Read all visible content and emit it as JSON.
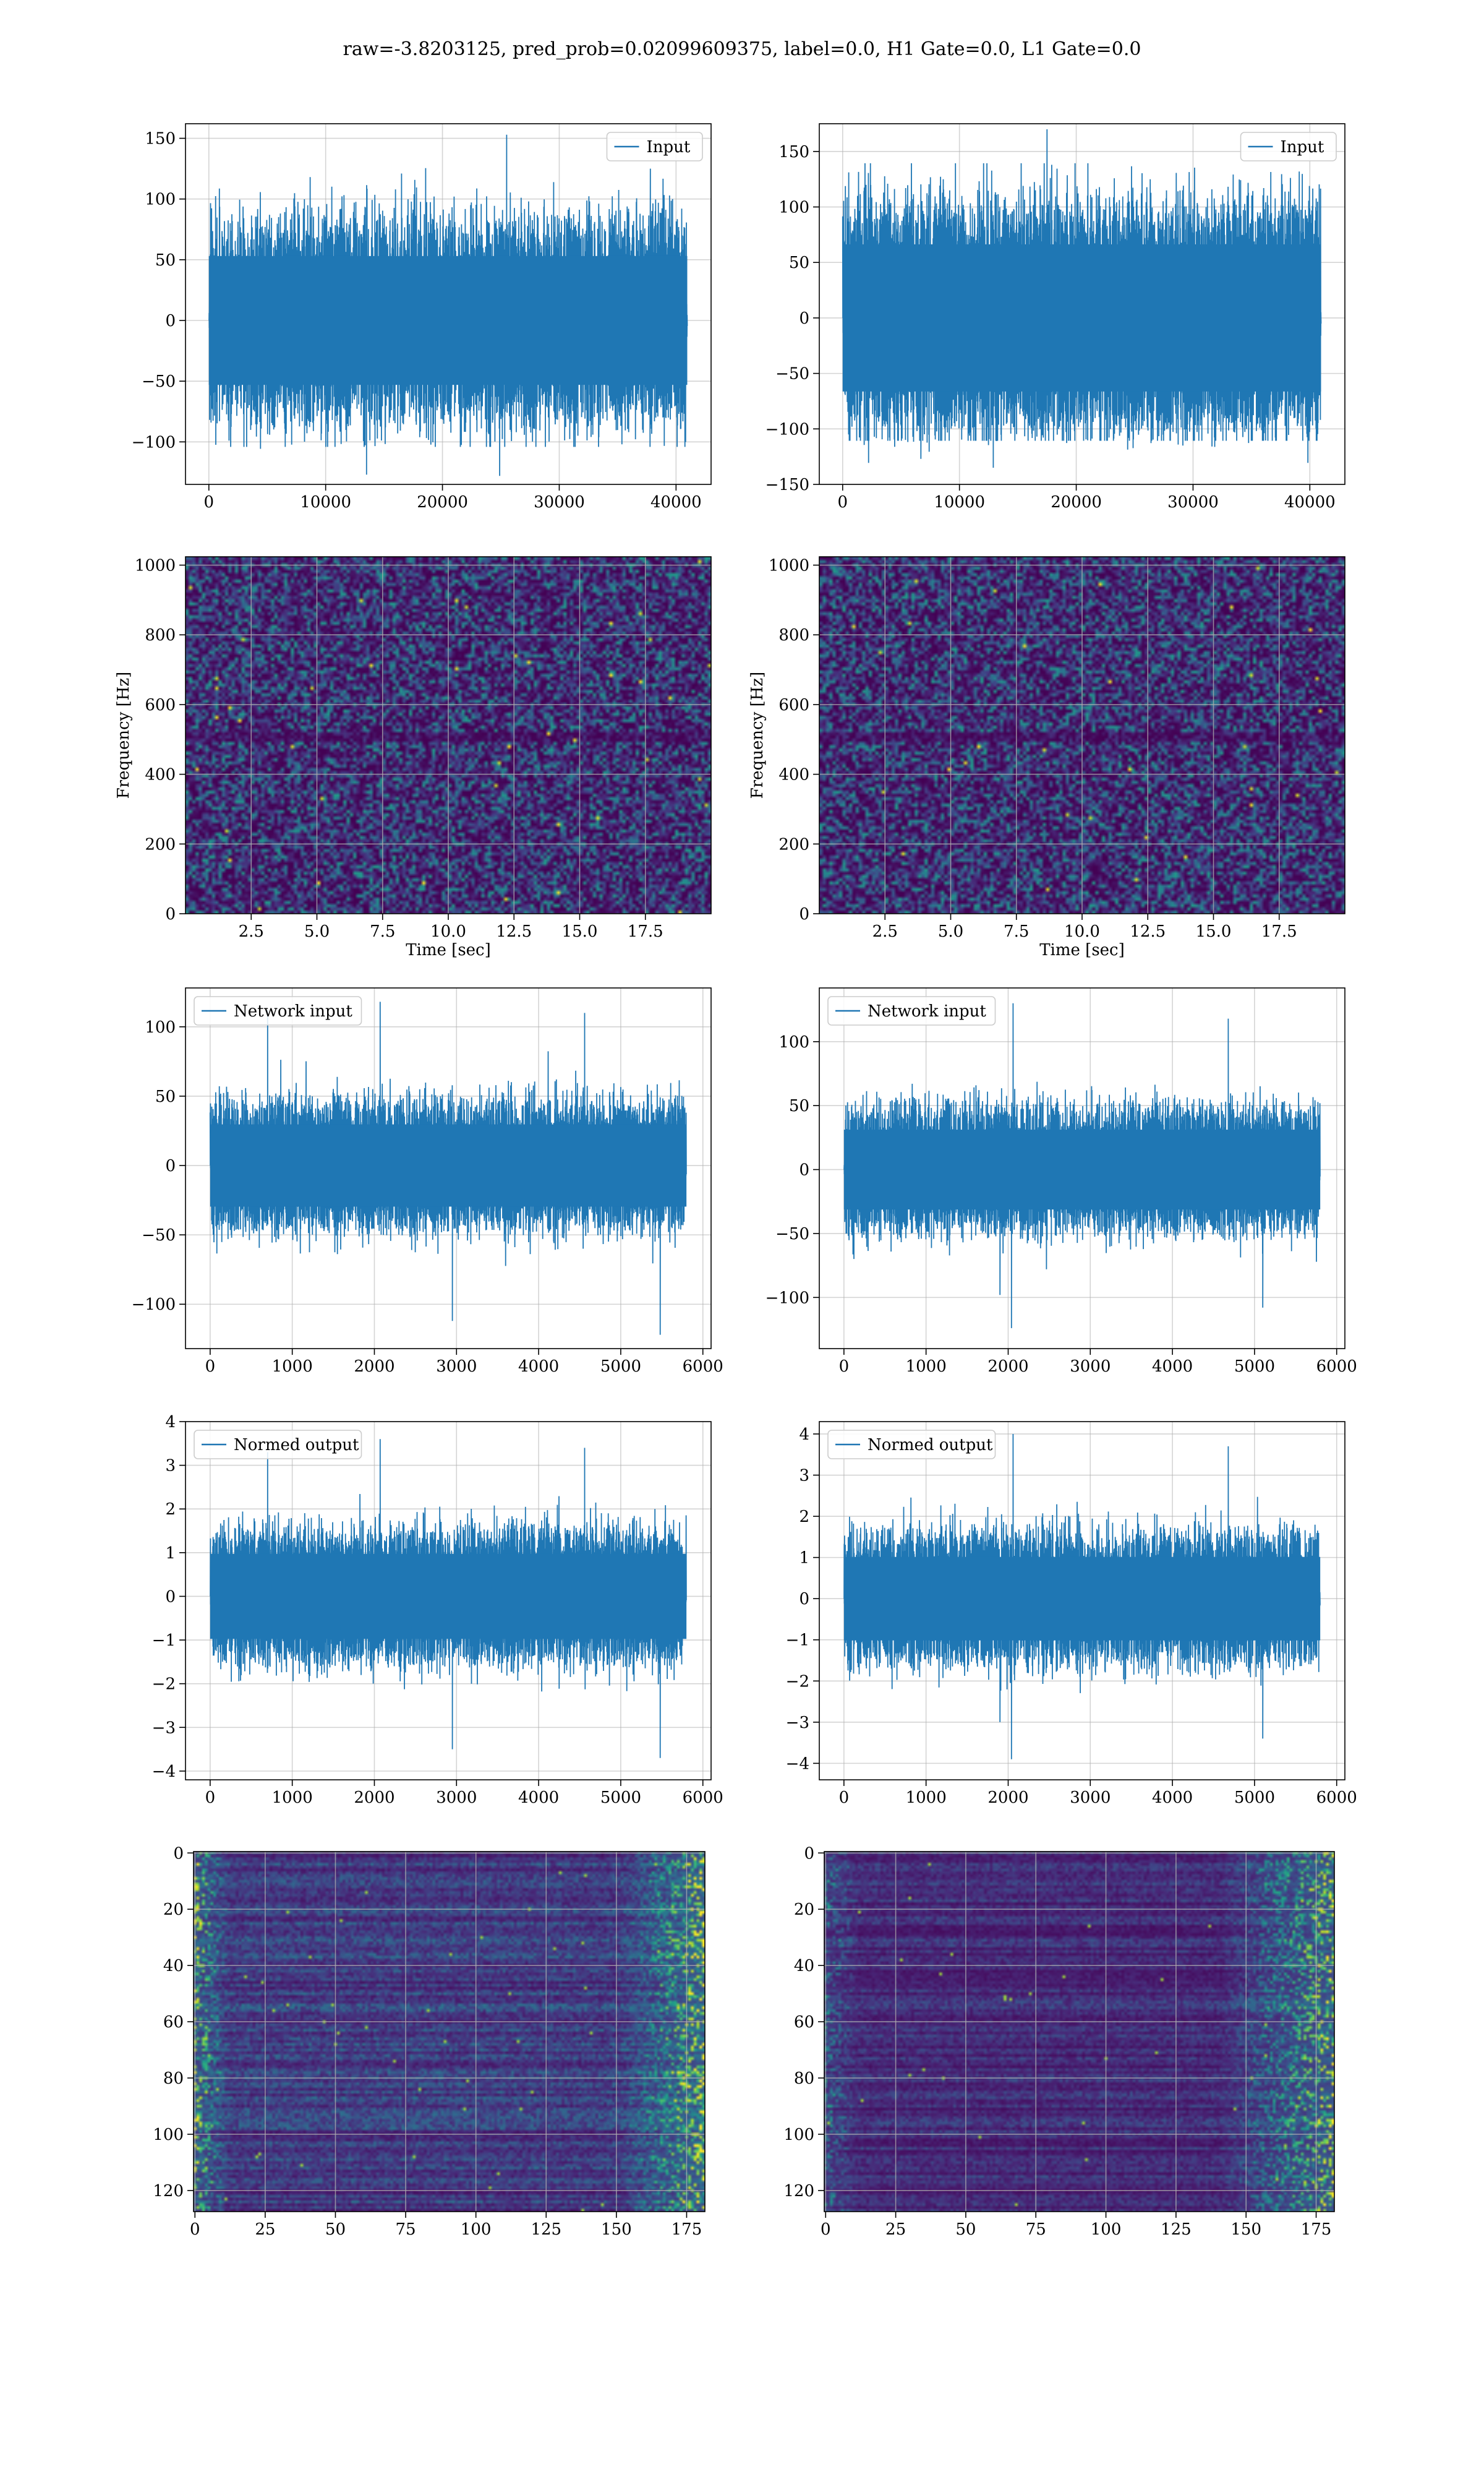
{
  "suptitle": "raw=-3.8203125, pred_prob=0.02099609375, label=0.0, H1 Gate=0.0, L1 Gate=0.0",
  "colors": {
    "line": "#1f77b4",
    "grid": "#b0b0b0",
    "viridis_low": "#440154",
    "viridis_mid": "#21918c",
    "viridis_high": "#fde725"
  },
  "chart_data": [
    {
      "id": "input-h1",
      "type": "line",
      "column": "left",
      "row": 0,
      "legend": "Input",
      "legend_loc": "upper right",
      "xlim": [
        -2000,
        43000
      ],
      "ylim": [
        -135,
        162
      ],
      "xticks": [
        0,
        10000,
        20000,
        30000,
        40000
      ],
      "yticks": [
        -100,
        -50,
        0,
        50,
        100,
        150
      ],
      "signal": {
        "n": 40960,
        "body": 68,
        "peak_max": 153,
        "peak_min": -127,
        "spikes": [
          [
            25500,
            153
          ],
          [
            13500,
            -127
          ],
          [
            16500,
            121
          ],
          [
            37800,
            125
          ],
          [
            24900,
            -128
          ]
        ]
      },
      "grid": true
    },
    {
      "id": "input-l1",
      "type": "line",
      "column": "right",
      "row": 0,
      "legend": "Input",
      "legend_loc": "upper right",
      "xlim": [
        -2000,
        43000
      ],
      "ylim": [
        -150,
        175
      ],
      "xticks": [
        0,
        10000,
        20000,
        30000,
        40000
      ],
      "yticks": [
        -150,
        -100,
        -50,
        0,
        50,
        100,
        150
      ],
      "signal": {
        "n": 40960,
        "body": 85,
        "peak_max": 170,
        "peak_min": -135,
        "spikes": [
          [
            17500,
            170
          ],
          [
            12900,
            -135
          ],
          [
            17900,
            138
          ],
          [
            2000,
            120
          ],
          [
            6700,
            -127
          ]
        ]
      },
      "grid": true
    },
    {
      "id": "spec-h1",
      "type": "heatmap",
      "column": "left",
      "row": 1,
      "xlabel": "Time [sec]",
      "ylabel": "Frequency [Hz]",
      "xlim": [
        0,
        20
      ],
      "ylim": [
        0,
        1024
      ],
      "xticks": [
        2.5,
        5.0,
        7.5,
        10.0,
        12.5,
        15.0,
        17.5
      ],
      "xticklabels": [
        "2.5",
        "5.0",
        "7.5",
        "10.0",
        "12.5",
        "15.0",
        "17.5"
      ],
      "yticks": [
        0,
        200,
        400,
        600,
        800,
        1000
      ],
      "grid": true
    },
    {
      "id": "spec-l1",
      "type": "heatmap",
      "column": "right",
      "row": 1,
      "xlabel": "Time [sec]",
      "ylabel": "Frequency [Hz]",
      "xlim": [
        0,
        20
      ],
      "ylim": [
        0,
        1024
      ],
      "xticks": [
        2.5,
        5.0,
        7.5,
        10.0,
        12.5,
        15.0,
        17.5
      ],
      "xticklabels": [
        "2.5",
        "5.0",
        "7.5",
        "10.0",
        "12.5",
        "15.0",
        "17.5"
      ],
      "yticks": [
        0,
        200,
        400,
        600,
        800,
        1000
      ],
      "grid": true
    },
    {
      "id": "netin-h1",
      "type": "line",
      "column": "left",
      "row": 2,
      "legend": "Network input",
      "legend_loc": "upper left",
      "xlim": [
        -300,
        6100
      ],
      "ylim": [
        -132,
        128
      ],
      "xticks": [
        0,
        1000,
        2000,
        3000,
        4000,
        5000,
        6000
      ],
      "yticks": [
        -100,
        -50,
        0,
        50,
        100
      ],
      "signal": {
        "n": 5800,
        "body": 38,
        "peak_max": 118,
        "peak_min": -122,
        "spikes": [
          [
            2070,
            118
          ],
          [
            5480,
            -122
          ],
          [
            2950,
            -112
          ],
          [
            700,
            112
          ],
          [
            4560,
            110
          ]
        ]
      },
      "grid": true
    },
    {
      "id": "netin-l1",
      "type": "line",
      "column": "right",
      "row": 2,
      "legend": "Network input",
      "legend_loc": "upper left",
      "xlim": [
        -300,
        6100
      ],
      "ylim": [
        -140,
        142
      ],
      "xticks": [
        0,
        1000,
        2000,
        3000,
        4000,
        5000,
        6000
      ],
      "yticks": [
        -100,
        -50,
        0,
        50,
        100
      ],
      "signal": {
        "n": 5800,
        "body": 40,
        "peak_max": 130,
        "peak_min": -124,
        "spikes": [
          [
            2060,
            130
          ],
          [
            2040,
            -124
          ],
          [
            4680,
            118
          ],
          [
            5100,
            -108
          ],
          [
            1900,
            -98
          ]
        ]
      },
      "grid": true
    },
    {
      "id": "normed-h1",
      "type": "line",
      "column": "left",
      "row": 3,
      "legend": "Normed output",
      "legend_loc": "upper left",
      "xlim": [
        -300,
        6100
      ],
      "ylim": [
        -4.2,
        4.0
      ],
      "xticks": [
        0,
        1000,
        2000,
        3000,
        4000,
        5000,
        6000
      ],
      "yticks": [
        -4,
        -3,
        -2,
        -1,
        0,
        1,
        2,
        3,
        4
      ],
      "signal": {
        "n": 5800,
        "body": 1.25,
        "peak_max": 3.6,
        "peak_min": -3.7,
        "spikes": [
          [
            2070,
            3.6
          ],
          [
            5480,
            -3.7
          ],
          [
            2950,
            -3.5
          ],
          [
            700,
            3.3
          ],
          [
            4560,
            3.4
          ]
        ]
      },
      "grid": true
    },
    {
      "id": "normed-l1",
      "type": "line",
      "column": "right",
      "row": 3,
      "legend": "Normed output",
      "legend_loc": "upper left",
      "xlim": [
        -300,
        6100
      ],
      "ylim": [
        -4.4,
        4.3
      ],
      "xticks": [
        0,
        1000,
        2000,
        3000,
        4000,
        5000,
        6000
      ],
      "yticks": [
        -4,
        -3,
        -2,
        -1,
        0,
        1,
        2,
        3,
        4
      ],
      "signal": {
        "n": 5800,
        "body": 1.3,
        "peak_max": 4.0,
        "peak_min": -3.9,
        "spikes": [
          [
            2060,
            4.0
          ],
          [
            2040,
            -3.9
          ],
          [
            4680,
            3.7
          ],
          [
            5100,
            -3.4
          ],
          [
            1900,
            -3.0
          ]
        ]
      },
      "grid": true
    },
    {
      "id": "feat-h1",
      "type": "heatmap",
      "column": "left",
      "row": 4,
      "xlim": [
        -0.5,
        181.5
      ],
      "ylim": [
        127.5,
        -0.5
      ],
      "xticks": [
        0,
        25,
        50,
        75,
        100,
        125,
        150,
        175
      ],
      "yticks": [
        0,
        20,
        40,
        60,
        80,
        100,
        120
      ],
      "grid": true
    },
    {
      "id": "feat-l1",
      "type": "heatmap",
      "column": "right",
      "row": 4,
      "xlim": [
        -0.5,
        181.5
      ],
      "ylim": [
        127.5,
        -0.5
      ],
      "xticks": [
        0,
        25,
        50,
        75,
        100,
        125,
        150,
        175
      ],
      "yticks": [
        0,
        20,
        40,
        60,
        80,
        100,
        120
      ],
      "grid": true
    }
  ]
}
